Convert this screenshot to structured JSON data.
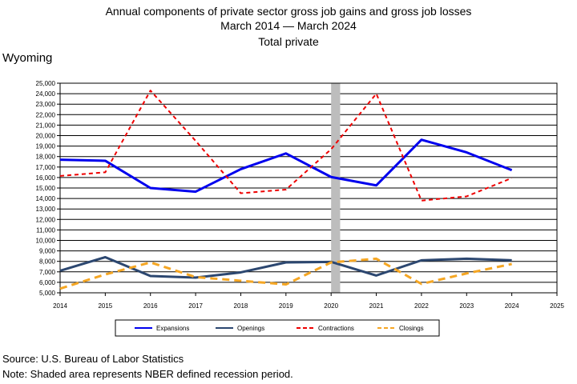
{
  "title": {
    "line1": "Annual components of private sector gross job gains and gross job losses",
    "line2": "March 2014 — March 2024",
    "line3": "Total private"
  },
  "region": "Wyoming",
  "footer": {
    "source": "Source: U.S. Bureau of Labor Statistics",
    "note": "Note: Shaded area represents NBER defined recession period."
  },
  "chart_data": {
    "type": "line",
    "x": [
      2014,
      2015,
      2016,
      2017,
      2018,
      2019,
      2020,
      2021,
      2022,
      2023,
      2024
    ],
    "xlim": [
      2014,
      2025
    ],
    "x_ticks": [
      "2014",
      "2015",
      "2016",
      "2017",
      "2018",
      "2019",
      "2020",
      "2021",
      "2022",
      "2023",
      "2024",
      "2025"
    ],
    "ylim": [
      5000,
      25000
    ],
    "y_ticks": [
      "5,000",
      "6,000",
      "7,000",
      "8,000",
      "9,000",
      "10,000",
      "11,000",
      "12,000",
      "13,000",
      "14,000",
      "15,000",
      "16,000",
      "17,000",
      "18,000",
      "19,000",
      "20,000",
      "21,000",
      "22,000",
      "23,000",
      "24,000",
      "25,000"
    ],
    "grid": "horizontal",
    "recession_period": [
      2020.0,
      2020.2
    ],
    "legend_position": "bottom",
    "series": [
      {
        "name": "Expansions",
        "color": "#0000ee",
        "style": "solid",
        "width": 3,
        "values": [
          17700,
          17600,
          15000,
          14650,
          16800,
          18300,
          16050,
          15250,
          19600,
          18400,
          16700
        ]
      },
      {
        "name": "Openings",
        "color": "#2c4770",
        "style": "solid",
        "width": 3,
        "values": [
          7100,
          8400,
          6600,
          6450,
          6950,
          7900,
          7950,
          6650,
          8100,
          8250,
          8100
        ]
      },
      {
        "name": "Contractions",
        "color": "#ee0000",
        "style": "dashed",
        "width": 2,
        "values": [
          16150,
          16500,
          24300,
          19500,
          14500,
          14850,
          18700,
          24000,
          13800,
          14200,
          15950
        ]
      },
      {
        "name": "Closings",
        "color": "#f5a623",
        "style": "dashed",
        "width": 3,
        "values": [
          5400,
          6750,
          7900,
          6500,
          6150,
          5800,
          7900,
          8250,
          5850,
          6850,
          7750
        ]
      }
    ]
  }
}
